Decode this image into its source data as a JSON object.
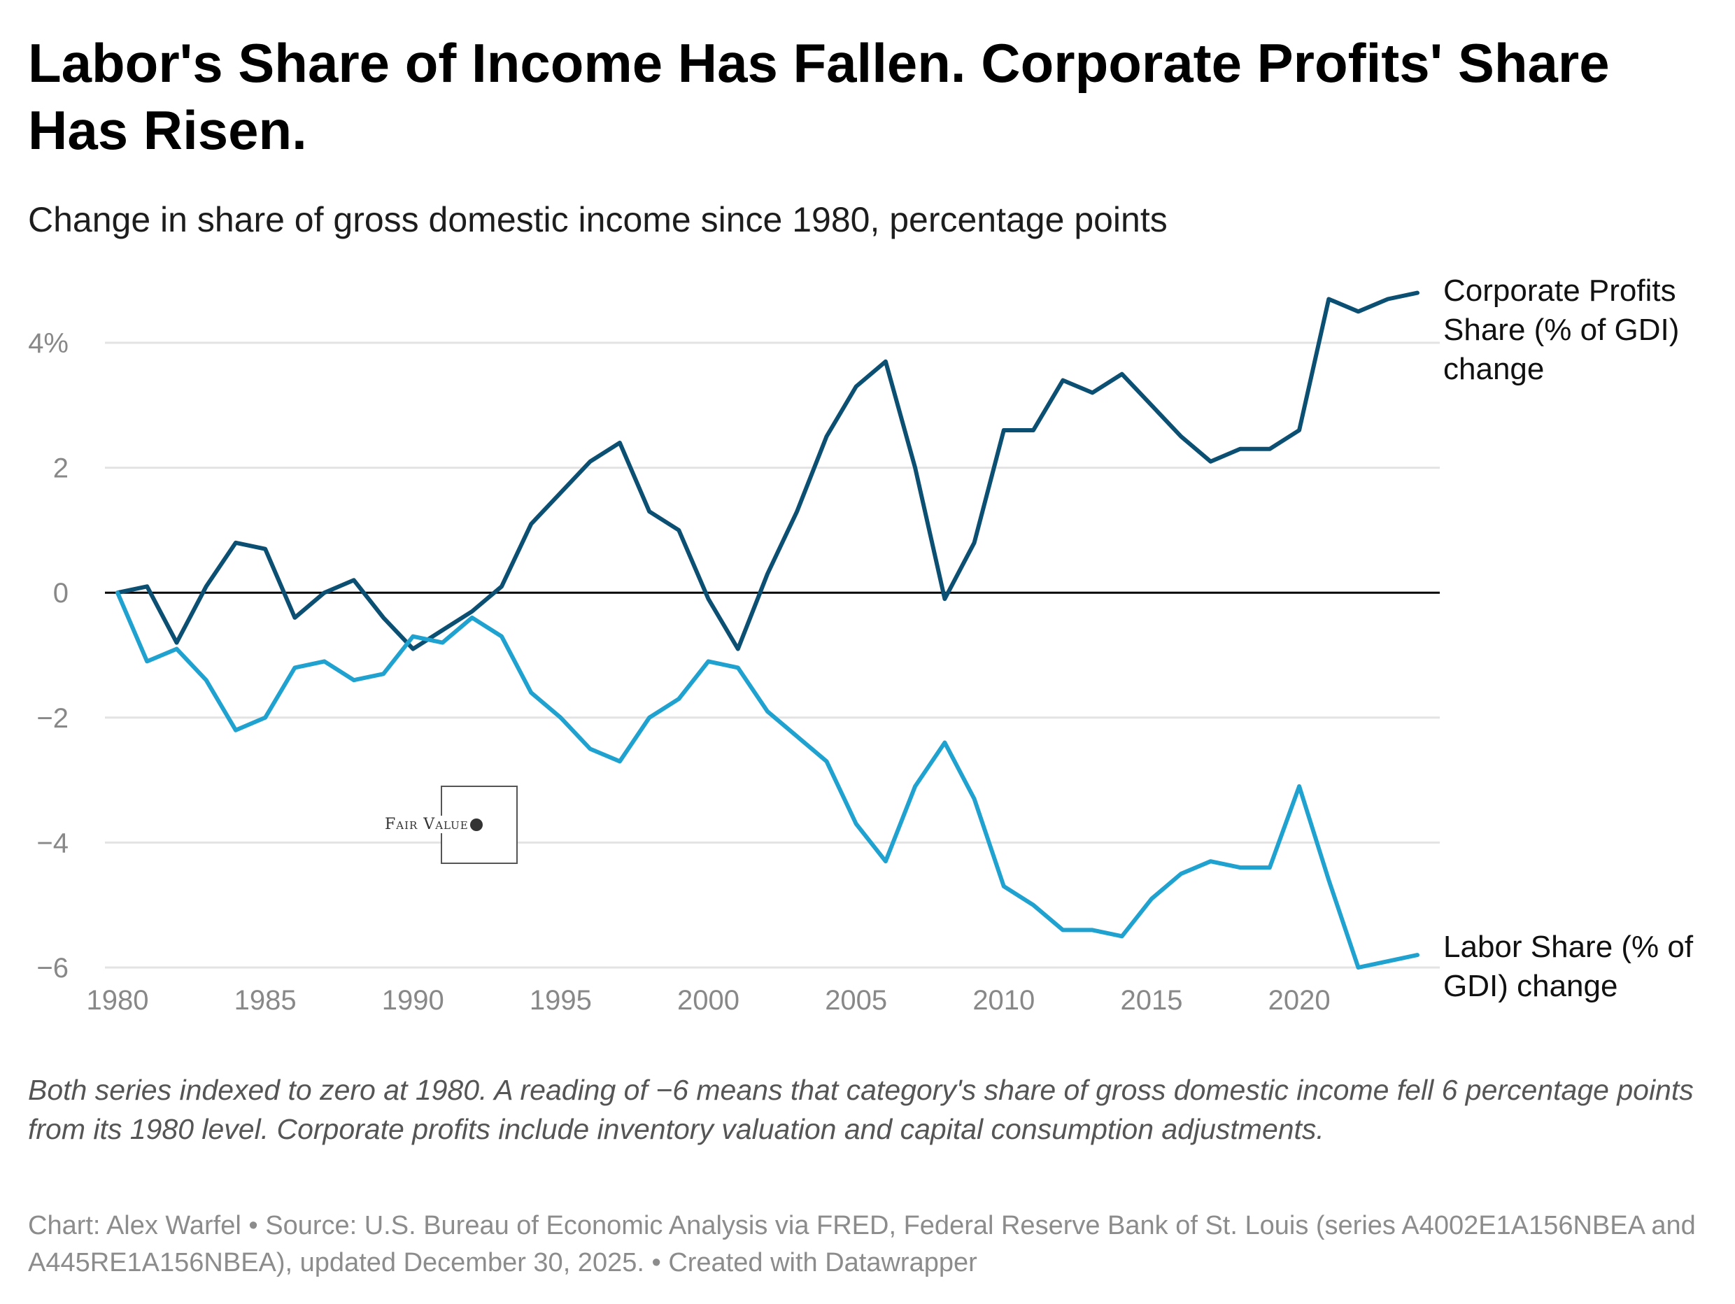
{
  "header": {
    "title": "Labor's Share of Income Has Fallen. Corporate Profits' Share Has Risen.",
    "subtitle": "Change in share of gross domestic income since 1980, percentage points"
  },
  "footer": {
    "notes": "Both series indexed to zero at 1980. A reading of −6 means that category's share of gross domestic income fell 6 percentage points from its 1980 level. Corporate profits include inventory valuation and capital consumption adjustments.",
    "credit": "Chart: Alex Warfel • Source: U.S. Bureau of Economic Analysis via FRED, Federal Reserve Bank of St. Louis (series A4002E1A156NBEA and A445RE1A156NBEA), updated December 30, 2025. • Created with Datawrapper"
  },
  "watermark": {
    "text": "Fair Value",
    "icon": "dice-icon"
  },
  "chart_data": {
    "type": "line",
    "title": "Labor's Share of Income Has Fallen. Corporate Profits' Share Has Risen.",
    "subtitle": "Change in share of gross domestic income since 1980, percentage points",
    "xlabel": "",
    "ylabel": "",
    "xlim": [
      1980,
      2024
    ],
    "ylim": [
      -6,
      4.8
    ],
    "x_ticks": [
      1980,
      1985,
      1990,
      1995,
      2000,
      2005,
      2010,
      2015,
      2020
    ],
    "x_tick_labels": [
      "1980",
      "1985",
      "1990",
      "1995",
      "2000",
      "2005",
      "2010",
      "2015",
      "2020"
    ],
    "y_ticks": [
      4,
      2,
      0,
      -2,
      -4,
      -6
    ],
    "y_tick_labels": [
      "4%",
      "2",
      "0",
      "−2",
      "−4",
      "−6"
    ],
    "grid": true,
    "legend": "direct labels at line ends",
    "x": [
      1980,
      1981,
      1982,
      1983,
      1984,
      1985,
      1986,
      1987,
      1988,
      1989,
      1990,
      1991,
      1992,
      1993,
      1994,
      1995,
      1996,
      1997,
      1998,
      1999,
      2000,
      2001,
      2002,
      2003,
      2004,
      2005,
      2006,
      2007,
      2008,
      2009,
      2010,
      2011,
      2012,
      2013,
      2014,
      2015,
      2016,
      2017,
      2018,
      2019,
      2020,
      2021,
      2022,
      2023,
      2024
    ],
    "series": [
      {
        "name": "Corporate Profits Share (% of GDI) change",
        "color": "#0b4f73",
        "values": [
          0,
          0.1,
          -0.8,
          0.1,
          0.8,
          0.7,
          -0.4,
          0,
          0.2,
          -0.4,
          -0.9,
          -0.6,
          -0.3,
          0.1,
          1.1,
          1.6,
          2.1,
          2.4,
          1.3,
          1.0,
          -0.1,
          -0.9,
          0.3,
          1.3,
          2.5,
          3.3,
          3.7,
          2.0,
          -0.1,
          0.8,
          2.6,
          2.6,
          3.4,
          3.2,
          3.5,
          3.0,
          2.5,
          2.1,
          2.3,
          2.3,
          2.6,
          4.7,
          4.5,
          4.7,
          4.8
        ]
      },
      {
        "name": "Labor Share (% of GDI) change",
        "color": "#1fa2cf",
        "values": [
          0,
          -1.1,
          -0.9,
          -1.4,
          -2.2,
          -2.0,
          -1.2,
          -1.1,
          -1.4,
          -1.3,
          -0.7,
          -0.8,
          -0.4,
          -0.7,
          -1.6,
          -2.0,
          -2.5,
          -2.7,
          -2.0,
          -1.7,
          -1.1,
          -1.2,
          -1.9,
          -2.3,
          -2.7,
          -3.7,
          -4.3,
          -3.1,
          -2.4,
          -3.3,
          -4.7,
          -5.0,
          -5.4,
          -5.4,
          -5.5,
          -4.9,
          -4.5,
          -4.3,
          -4.4,
          -4.4,
          -3.1,
          -4.6,
          -6.0,
          -5.9,
          -5.8
        ]
      }
    ]
  }
}
